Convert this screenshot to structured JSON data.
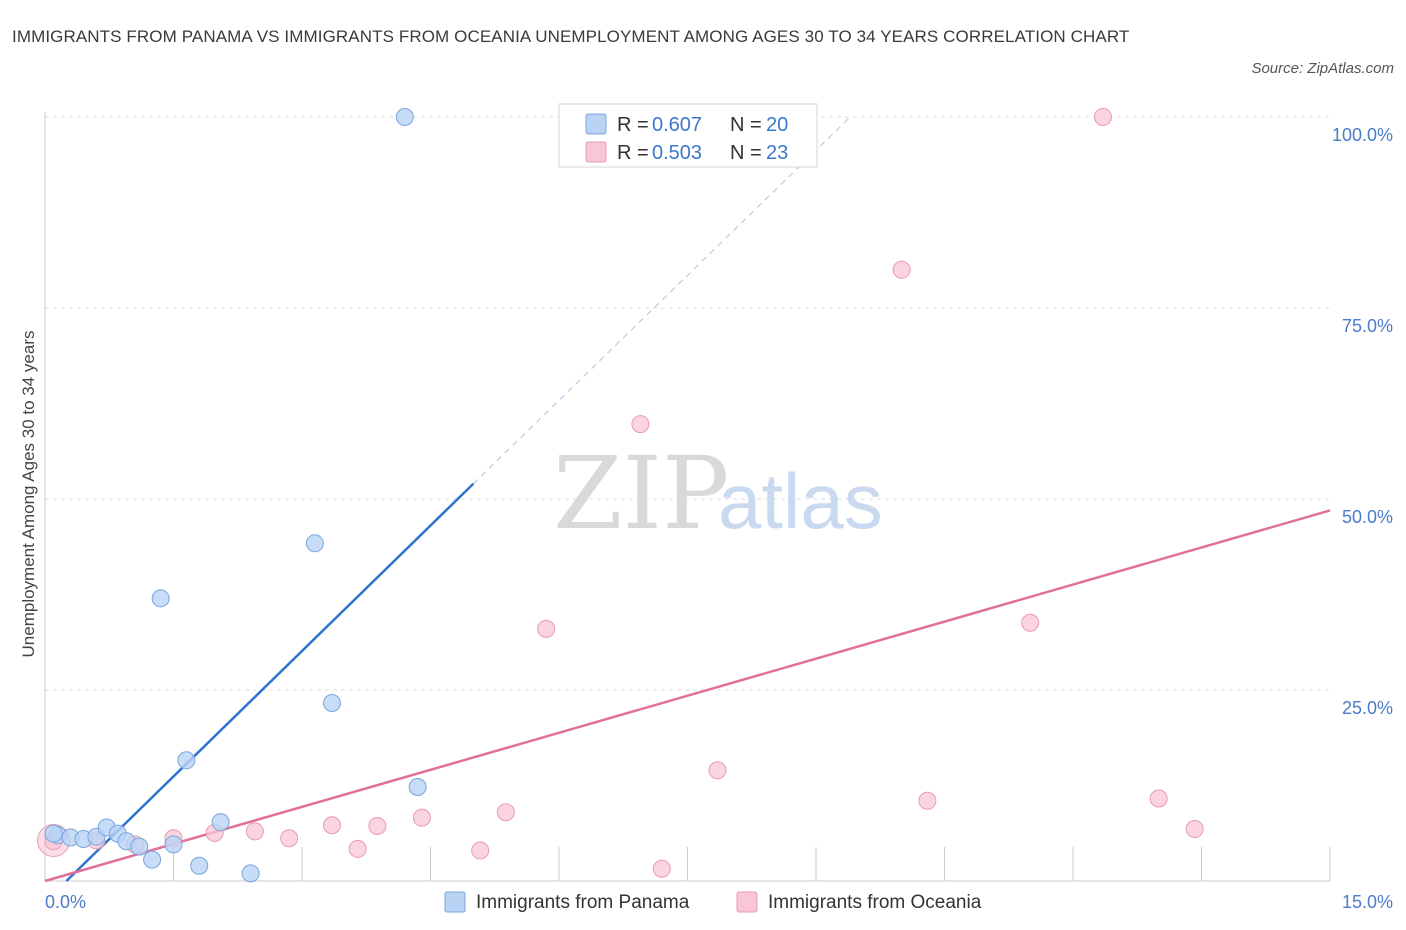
{
  "title": "IMMIGRANTS FROM PANAMA VS IMMIGRANTS FROM OCEANIA UNEMPLOYMENT AMONG AGES 30 TO 34 YEARS CORRELATION CHART",
  "source": "Source: ZipAtlas.com",
  "watermark": {
    "zip": "ZIP",
    "atlas": "atlas"
  },
  "colors": {
    "panama_fill": "#b9d3f5",
    "panama_stroke": "#7aa5dd",
    "panama_line": "#2e73cf",
    "oceania_fill": "#f8c6d6",
    "oceania_stroke": "#e99ab5",
    "oceania_line": "#e0709a",
    "grid": "#dddddd",
    "tick_text": "#4a7cc7"
  },
  "legend": {
    "r_label": "R =",
    "n_label": "N =",
    "panama": {
      "r": "0.607",
      "n": "20"
    },
    "oceania": {
      "r": "0.503",
      "n": "23"
    }
  },
  "chart_data": {
    "type": "scatter",
    "title": "IMMIGRANTS FROM PANAMA VS IMMIGRANTS FROM OCEANIA UNEMPLOYMENT AMONG AGES 30 TO 34 YEARS CORRELATION CHART",
    "xlabel": "",
    "ylabel": "Unemployment Among Ages 30 to 34 years",
    "xlim": [
      0,
      15
    ],
    "ylim": [
      0,
      100
    ],
    "x_tick_labels": [
      "0.0%",
      "15.0%"
    ],
    "y_ticks": [
      25,
      50,
      75,
      100
    ],
    "y_tick_labels": [
      "25.0%",
      "50.0%",
      "75.0%",
      "100.0%"
    ],
    "legend_position": "top-center",
    "series": [
      {
        "name": "Immigrants from Panama",
        "r": 0.607,
        "n": 20,
        "points": [
          [
            0.15,
            6.0
          ],
          [
            0.3,
            5.7
          ],
          [
            0.45,
            5.5
          ],
          [
            0.6,
            5.8
          ],
          [
            0.72,
            7.0
          ],
          [
            0.85,
            6.2
          ],
          [
            0.95,
            5.2
          ],
          [
            1.1,
            4.5
          ],
          [
            1.25,
            2.8
          ],
          [
            1.35,
            37.0
          ],
          [
            1.5,
            4.8
          ],
          [
            1.65,
            15.8
          ],
          [
            1.8,
            2.0
          ],
          [
            2.05,
            7.7
          ],
          [
            2.4,
            1.0
          ],
          [
            3.15,
            44.2
          ],
          [
            3.35,
            23.3
          ],
          [
            4.2,
            100.0
          ],
          [
            4.35,
            12.3
          ],
          [
            0.1,
            6.2
          ]
        ],
        "trend": {
          "x": [
            0.25,
            5.0
          ],
          "y": [
            0.0,
            52.0
          ],
          "dashed_to": [
            9.4,
            100.0
          ]
        }
      },
      {
        "name": "Immigrants from Oceania",
        "r": 0.503,
        "n": 23,
        "points": [
          [
            0.1,
            5.2
          ],
          [
            0.6,
            5.3
          ],
          [
            1.05,
            4.8
          ],
          [
            1.5,
            5.6
          ],
          [
            1.98,
            6.3
          ],
          [
            2.45,
            6.5
          ],
          [
            2.85,
            5.6
          ],
          [
            3.35,
            7.3
          ],
          [
            3.65,
            4.2
          ],
          [
            3.88,
            7.2
          ],
          [
            4.4,
            8.3
          ],
          [
            5.08,
            4.0
          ],
          [
            5.38,
            9.0
          ],
          [
            5.85,
            33.0
          ],
          [
            6.95,
            59.8
          ],
          [
            7.2,
            1.6
          ],
          [
            7.85,
            14.5
          ],
          [
            10.0,
            80.0
          ],
          [
            10.3,
            10.5
          ],
          [
            11.5,
            33.8
          ],
          [
            12.35,
            100.0
          ],
          [
            13.0,
            10.8
          ],
          [
            13.42,
            6.8
          ]
        ],
        "trend": {
          "x": [
            0.0,
            15.0
          ],
          "y": [
            0.0,
            48.5
          ]
        }
      }
    ]
  },
  "bottom_legend": {
    "panama": "Immigrants from Panama",
    "oceania": "Immigrants from Oceania"
  }
}
